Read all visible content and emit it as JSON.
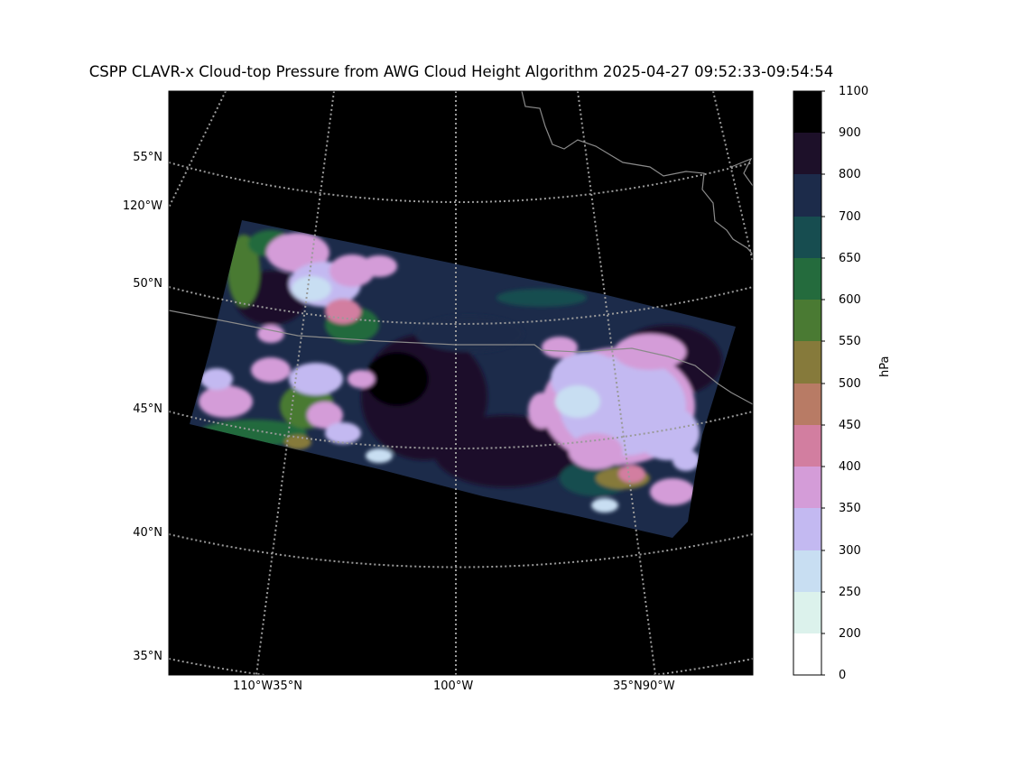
{
  "title": "CSPP CLAVR-x Cloud-top Pressure from AWG Cloud Height Algorithm 2025-04-27 09:52:33-09:54:54",
  "lat_labels": [
    "55°N",
    "50°N",
    "45°N",
    "40°N",
    "35°N"
  ],
  "lon_labels_left": [
    "120°W"
  ],
  "bottom_labels": [
    "110°W35°N",
    "100°W",
    "35°N90°W"
  ],
  "colorbar": {
    "units": "hPa",
    "ticks": [
      "1100",
      "900",
      "800",
      "700",
      "650",
      "600",
      "550",
      "500",
      "450",
      "400",
      "350",
      "300",
      "250",
      "200",
      "0"
    ],
    "colors": [
      "#000000",
      "#1d1029",
      "#1c2b4a",
      "#174d50",
      "#246b3d",
      "#4a7a33",
      "#867a3b",
      "#b87b65",
      "#d27ea0",
      "#d49cd8",
      "#c3b9f1",
      "#c8def2",
      "#dcf2ec",
      "#ffffff"
    ]
  },
  "colors": {
    "map_background": "#000000",
    "graticule": "#9a9a9a",
    "border": "#8a8a8a"
  }
}
